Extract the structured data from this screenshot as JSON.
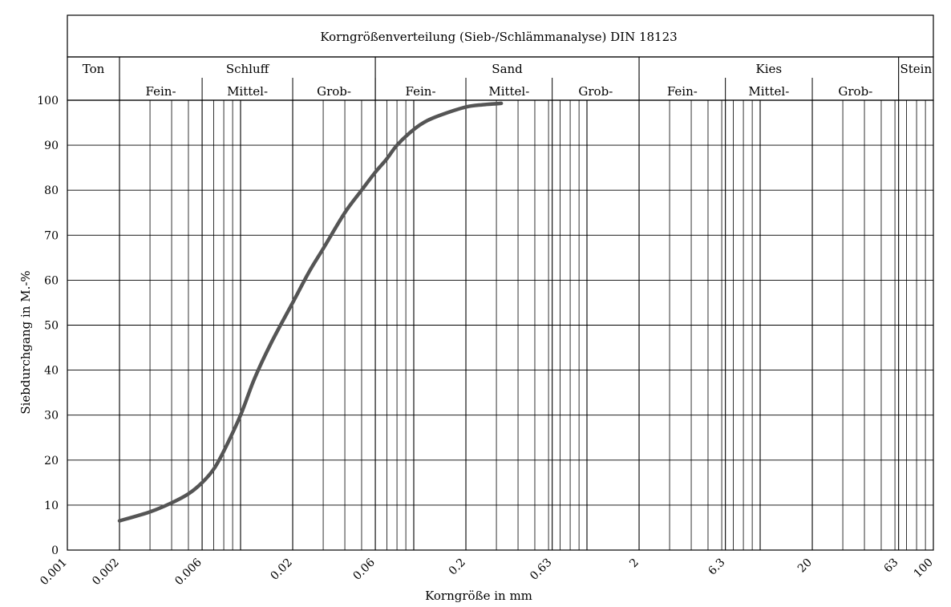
{
  "chart_data": {
    "type": "line",
    "title": "Korngrößenverteilung (Sieb-/Schlämmanalyse) DIN 18123",
    "xlabel": "Korngröße in mm",
    "ylabel": "Siebdurchgang in M.-%",
    "x_scale": "log",
    "xlim": [
      0.001,
      100
    ],
    "ylim": [
      0,
      100
    ],
    "x_ticks": [
      "0.001",
      "0.002",
      "0.006",
      "0.02",
      "0.06",
      "0.2",
      "0.63",
      "2",
      "6.3",
      "20",
      "63",
      "100"
    ],
    "y_ticks": [
      "0",
      "10",
      "20",
      "30",
      "40",
      "50",
      "60",
      "70",
      "80",
      "90",
      "100"
    ],
    "grid": true,
    "soil_classes": {
      "main": [
        {
          "label": "Ton",
          "from": 0.001,
          "to": 0.002
        },
        {
          "label": "Schluff",
          "from": 0.002,
          "to": 0.06
        },
        {
          "label": "Sand",
          "from": 0.06,
          "to": 2
        },
        {
          "label": "Kies",
          "from": 2,
          "to": 63
        },
        {
          "label": "Stein",
          "from": 63,
          "to": 100
        }
      ],
      "sub": [
        {
          "label": "Fein-",
          "from": 0.002,
          "to": 0.006
        },
        {
          "label": "Mittel-",
          "from": 0.006,
          "to": 0.02
        },
        {
          "label": "Grob-",
          "from": 0.02,
          "to": 0.06
        },
        {
          "label": "Fein-",
          "from": 0.06,
          "to": 0.2
        },
        {
          "label": "Mittel-",
          "from": 0.2,
          "to": 0.63
        },
        {
          "label": "Grob-",
          "from": 0.63,
          "to": 2
        },
        {
          "label": "Fein-",
          "from": 2,
          "to": 6.3
        },
        {
          "label": "Mittel-",
          "from": 6.3,
          "to": 20
        },
        {
          "label": "Grob-",
          "from": 20,
          "to": 63
        }
      ]
    },
    "series": [
      {
        "color": "#555555",
        "x": [
          0.002,
          0.003,
          0.004,
          0.005,
          0.006,
          0.007,
          0.008,
          0.01,
          0.012,
          0.015,
          0.02,
          0.025,
          0.03,
          0.04,
          0.05,
          0.06,
          0.07,
          0.08,
          0.1,
          0.12,
          0.15,
          0.2,
          0.25,
          0.32
        ],
        "y": [
          6.5,
          8.5,
          10.5,
          12.5,
          15,
          18,
          22,
          30,
          38,
          46,
          55,
          62,
          67,
          75,
          80,
          84,
          87,
          90,
          93.5,
          95.5,
          97,
          98.5,
          99,
          99.3
        ]
      }
    ]
  }
}
